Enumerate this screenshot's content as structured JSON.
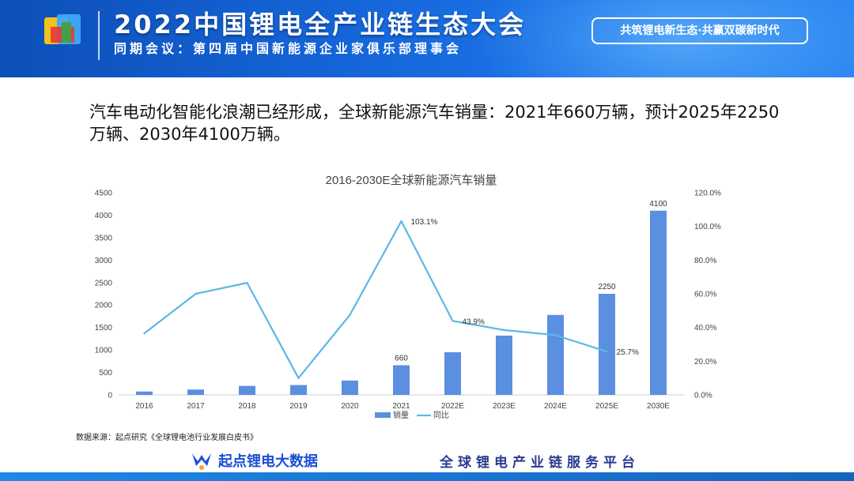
{
  "header": {
    "title": "2022中国锂电全产业链生态大会",
    "subtitle": "同期会议：第四届中国新能源企业家俱乐部理事会",
    "slogan": "共筑锂电新生态·共赢双碳新时代"
  },
  "headline": "汽车电动化智能化浪潮已经形成，全球新能源汽车销量：2021年660万辆，预计2025年2250万辆、2030年4100万辆。",
  "source": "数据来源：起点研究《全球锂电池行业发展白皮书》",
  "footer": {
    "brand": "起点锂电大数据",
    "platform": "全球锂电产业链服务平台"
  },
  "colors": {
    "bar": "#5b8fe0",
    "line": "#5bb8e6",
    "header": "#1565d8"
  },
  "chart_data": {
    "type": "bar",
    "title": "2016-2030E全球新能源汽车销量",
    "categories": [
      "2016",
      "2017",
      "2018",
      "2019",
      "2020",
      "2021",
      "2022E",
      "2023E",
      "2024E",
      "2025E",
      "2030E"
    ],
    "series": [
      {
        "name": "销量",
        "type": "bar",
        "axis": "left",
        "values": [
          75,
          120,
          200,
          220,
          320,
          660,
          950,
          1320,
          1780,
          2250,
          4100
        ]
      },
      {
        "name": "同比",
        "type": "line",
        "axis": "right",
        "values": [
          36.5,
          60,
          66.5,
          10,
          47.5,
          103.1,
          43.9,
          38.5,
          35.5,
          25.7,
          null
        ]
      }
    ],
    "data_labels": {
      "bar": {
        "5": "660",
        "9": "2250",
        "10": "4100"
      },
      "line": {
        "5": "103.1%",
        "6": "43.9%",
        "9": "25.7%"
      }
    },
    "ylim_left": [
      0,
      4500
    ],
    "yticks_left": [
      "0",
      "500",
      "1000",
      "1500",
      "2000",
      "2500",
      "3000",
      "3500",
      "4000",
      "4500"
    ],
    "ylim_right": [
      0,
      120
    ],
    "yticks_right": [
      "0.0%",
      "20.0%",
      "40.0%",
      "60.0%",
      "80.0%",
      "100.0%",
      "120.0%"
    ],
    "legend": [
      "销量",
      "同比"
    ],
    "legend_position": "bottom",
    "grid": false
  }
}
